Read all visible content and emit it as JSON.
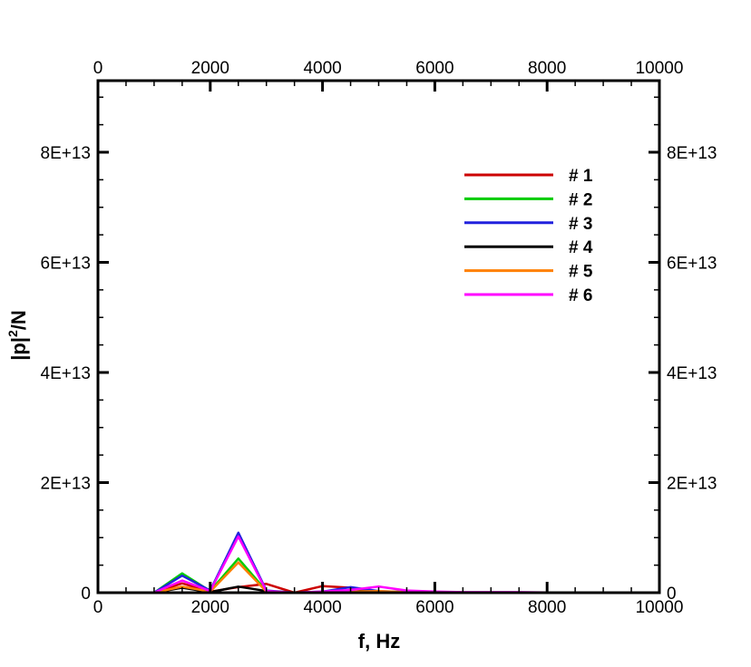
{
  "chart_data": {
    "type": "line",
    "title": "",
    "xlabel": "f, Hz",
    "ylabel_base": "|p|",
    "ylabel_sup": "2",
    "ylabel_tail": "/N",
    "xlim": [
      0,
      10000
    ],
    "ylim": [
      0,
      93000000000000
    ],
    "x_ticks": [
      0,
      2000,
      4000,
      6000,
      8000,
      10000
    ],
    "x_tick_labels": [
      "0",
      "2000",
      "4000",
      "6000",
      "8000",
      "10000"
    ],
    "y_ticks": [
      0,
      20000000000000,
      40000000000000,
      60000000000000,
      80000000000000
    ],
    "y_tick_labels": [
      "0",
      "2E+13",
      "4E+13",
      "6E+13",
      "8E+13"
    ],
    "x_minor_step": 500,
    "y_minor_step": 5000000000000,
    "grid": false,
    "legend_position": "upper-right",
    "x": [
      1000,
      1500,
      2000,
      2500,
      3000,
      3500,
      4000,
      4500,
      5000,
      5500,
      6000,
      6500,
      7000,
      7500,
      8000,
      8500,
      9000,
      9500,
      10000
    ],
    "series": [
      {
        "name": "# 1",
        "color": "#cc0000",
        "values": [
          0,
          1700000000000,
          200000000000,
          1000000000000,
          1600000000000,
          0,
          1200000000000,
          900000000000,
          200000000000,
          100000000000,
          100000000000,
          50000000000,
          50000000000,
          0,
          0,
          0,
          0,
          0,
          0
        ]
      },
      {
        "name": "# 2",
        "color": "#00cc00",
        "values": [
          0,
          3500000000000,
          300000000000,
          6200000000000,
          300000000000,
          0,
          100000000000,
          100000000000,
          200000000000,
          100000000000,
          50000000000,
          50000000000,
          0,
          0,
          0,
          0,
          0,
          0,
          0
        ]
      },
      {
        "name": "# 3",
        "color": "#2222dd",
        "values": [
          0,
          3100000000000,
          400000000000,
          10900000000000,
          400000000000,
          0,
          200000000000,
          1000000000000,
          300000000000,
          100000000000,
          50000000000,
          50000000000,
          0,
          0,
          0,
          0,
          0,
          0,
          0
        ]
      },
      {
        "name": "# 4",
        "color": "#000000",
        "values": [
          0,
          900000000000,
          100000000000,
          1100000000000,
          300000000000,
          0,
          100000000000,
          400000000000,
          100000000000,
          50000000000,
          0,
          0,
          0,
          0,
          0,
          0,
          0,
          0,
          0
        ]
      },
      {
        "name": "# 5",
        "color": "#ff8000",
        "values": [
          0,
          1100000000000,
          200000000000,
          5500000000000,
          200000000000,
          0,
          100000000000,
          200000000000,
          300000000000,
          100000000000,
          50000000000,
          0,
          0,
          0,
          0,
          0,
          0,
          0,
          0
        ]
      },
      {
        "name": "# 6",
        "color": "#ff00ff",
        "values": [
          0,
          2200000000000,
          300000000000,
          10200000000000,
          300000000000,
          0,
          200000000000,
          500000000000,
          1100000000000,
          400000000000,
          200000000000,
          100000000000,
          100000000000,
          100000000000,
          50000000000,
          50000000000,
          50000000000,
          0,
          0
        ]
      }
    ]
  }
}
